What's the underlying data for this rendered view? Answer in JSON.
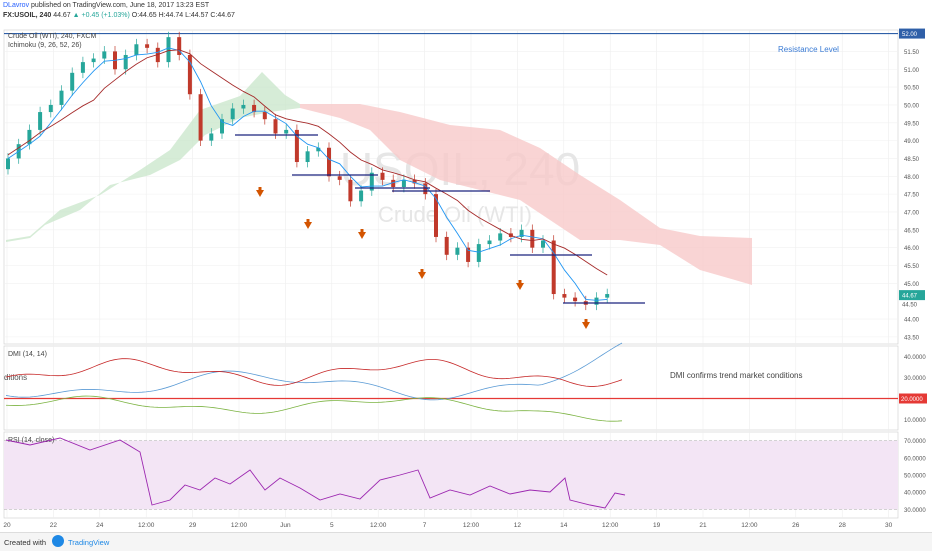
{
  "header": {
    "author": "DLavrov",
    "published": "published on TradingView.com, June 18, 2017 13:23 EST",
    "symbol_line": "FX:USOIL, 240",
    "last": "44.67",
    "change": "▲ +0.45 (+1.03%)",
    "ohlc": "O:44.65  H:44.74  L:44.57  C:44.67"
  },
  "main_pane": {
    "title": "Crude Oil (WTI), 240, FXCM",
    "indicator_label": "Ichimoku (9, 26, 52, 26)",
    "watermark_symbol": "USOIL, 240",
    "watermark_name": "Crude Oil (WTI)",
    "resistance_label": "Resistance Level",
    "resistance_value": "52.00",
    "last_price_badge": "44.67",
    "second_badge": "44.50",
    "y_ticks": [
      "51.50",
      "51.00",
      "50.50",
      "50.00",
      "49.50",
      "49.00",
      "48.50",
      "48.00",
      "47.50",
      "47.00",
      "46.50",
      "46.00",
      "45.50",
      "45.00",
      "44.00",
      "43.50"
    ]
  },
  "dmi_pane": {
    "label": "DMI (14, 14)",
    "note": "DMI confirms trend market conditions",
    "cut_text": "ditions",
    "threshold_badge": "20.0000",
    "y_ticks": [
      "40.0000",
      "30.0000",
      "10.0000"
    ]
  },
  "rsi_pane": {
    "label": "RSI (14, close)",
    "y_ticks": [
      "70.0000",
      "60.0000",
      "50.0000",
      "40.0000",
      "30.0000"
    ]
  },
  "x_axis": [
    "20",
    "22",
    "24",
    "12:00",
    "29",
    "12:00",
    "Jun",
    "5",
    "12:00",
    "7",
    "12:00",
    "12",
    "14",
    "12:00",
    "19",
    "21",
    "12:00",
    "26",
    "28",
    "30"
  ],
  "footer": {
    "created_with": "Created with",
    "brand": "TradingView"
  },
  "colors": {
    "up": "#26a69a",
    "down": "#c0392b",
    "resistance": "#2f5fa8",
    "tenkan": "#2196f3",
    "kijun": "#a52a2a",
    "bull_cloud": "#c8e6c9",
    "bear_cloud": "#f8c9c9",
    "rsi": "#9c27b0",
    "rsi_band": "#f3e5f5",
    "arrow": "#d35400"
  },
  "chart_data": [
    {
      "type": "candlestick",
      "title": "Crude Oil (WTI), 240, FXCM",
      "ylim": [
        43.3,
        52.1
      ],
      "x_tick_labels": [
        "20",
        "22",
        "24",
        "12:00",
        "29",
        "12:00",
        "Jun",
        "5",
        "12:00",
        "7",
        "12:00",
        "12",
        "14",
        "12:00",
        "19",
        "21",
        "12:00",
        "26",
        "28",
        "30"
      ],
      "close_approx": [
        48.5,
        48.9,
        49.3,
        49.8,
        50.0,
        50.4,
        50.9,
        51.2,
        51.3,
        51.5,
        51.0,
        51.4,
        51.7,
        51.6,
        51.2,
        51.9,
        51.4,
        50.3,
        49.0,
        49.2,
        49.6,
        49.9,
        50.0,
        49.8,
        49.6,
        49.2,
        49.3,
        48.4,
        48.7,
        48.8,
        48.0,
        47.9,
        47.3,
        47.6,
        48.1,
        47.9,
        47.7,
        47.9,
        47.8,
        47.5,
        46.3,
        45.8,
        46.0,
        45.6,
        46.1,
        46.2,
        46.4,
        46.3,
        46.5,
        46.0,
        46.2,
        44.7,
        44.6,
        44.5,
        44.4,
        44.6,
        44.7
      ],
      "resistance_level": 52.0,
      "annotations": [
        "Resistance Level"
      ],
      "indicator": "Ichimoku (9, 26, 52, 26)"
    },
    {
      "type": "line",
      "title": "DMI (14, 14)",
      "threshold": 20,
      "y_ticks": [
        40,
        30,
        10
      ]
    },
    {
      "type": "line",
      "title": "RSI (14, close)",
      "band": [
        30,
        70
      ],
      "y_ticks": [
        70,
        60,
        50,
        40,
        30
      ]
    }
  ]
}
